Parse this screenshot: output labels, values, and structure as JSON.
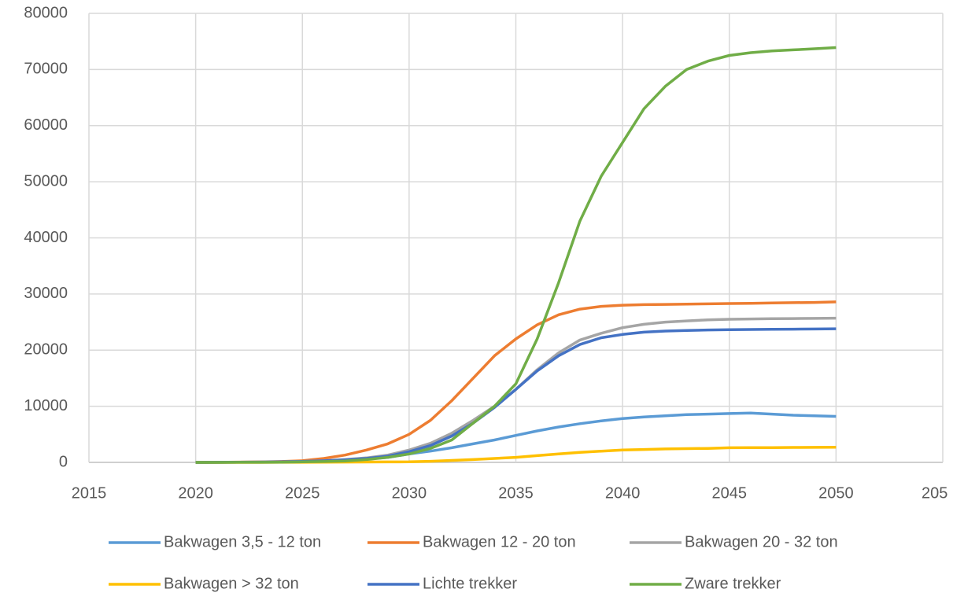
{
  "chart_data": {
    "type": "line",
    "x": [
      2020,
      2021,
      2022,
      2023,
      2024,
      2025,
      2026,
      2027,
      2028,
      2029,
      2030,
      2031,
      2032,
      2033,
      2034,
      2035,
      2036,
      2037,
      2038,
      2039,
      2040,
      2041,
      2042,
      2043,
      2044,
      2045,
      2046,
      2047,
      2048,
      2049,
      2050
    ],
    "series": [
      {
        "name": "Bakwagen 3,5 - 12 ton",
        "color": "#5b9bd5",
        "values": [
          0,
          10,
          30,
          60,
          100,
          170,
          260,
          400,
          600,
          900,
          1500,
          2000,
          2600,
          3300,
          4000,
          4800,
          5600,
          6300,
          6900,
          7400,
          7800,
          8100,
          8300,
          8500,
          8600,
          8700,
          8800,
          8600,
          8400,
          8300,
          8200
        ]
      },
      {
        "name": "Bakwagen 12 - 20 ton",
        "color": "#ed7d31",
        "values": [
          0,
          20,
          50,
          90,
          150,
          300,
          700,
          1300,
          2200,
          3300,
          5000,
          7500,
          11000,
          15000,
          19000,
          22000,
          24500,
          26300,
          27300,
          27800,
          28000,
          28100,
          28150,
          28200,
          28250,
          28300,
          28350,
          28400,
          28450,
          28500,
          28600
        ]
      },
      {
        "name": "Bakwagen 20 - 32 ton",
        "color": "#a5a5a5",
        "values": [
          0,
          10,
          30,
          60,
          100,
          180,
          300,
          500,
          800,
          1300,
          2200,
          3400,
          5200,
          7500,
          10000,
          13000,
          16500,
          19500,
          21800,
          23000,
          24000,
          24600,
          25000,
          25200,
          25400,
          25500,
          25550,
          25600,
          25620,
          25650,
          25700
        ]
      },
      {
        "name": "Bakwagen > 32 ton",
        "color": "#ffc000",
        "values": [
          0,
          0,
          0,
          5,
          10,
          20,
          30,
          50,
          70,
          90,
          100,
          200,
          350,
          500,
          700,
          900,
          1200,
          1500,
          1800,
          2000,
          2200,
          2300,
          2400,
          2450,
          2500,
          2600,
          2620,
          2640,
          2660,
          2680,
          2700
        ]
      },
      {
        "name": "Lichte trekker",
        "color": "#4472c4",
        "values": [
          0,
          10,
          30,
          60,
          100,
          170,
          280,
          450,
          700,
          1100,
          1900,
          3000,
          4700,
          7000,
          9800,
          13000,
          16300,
          19000,
          21000,
          22200,
          22800,
          23200,
          23400,
          23500,
          23600,
          23650,
          23680,
          23700,
          23730,
          23760,
          23800
        ]
      },
      {
        "name": "Zware trekker",
        "color": "#70ad47",
        "values": [
          0,
          5,
          10,
          20,
          40,
          100,
          150,
          250,
          500,
          900,
          1500,
          2500,
          4000,
          7000,
          10000,
          14000,
          22000,
          32000,
          43000,
          51000,
          57000,
          63000,
          67000,
          70000,
          71500,
          72500,
          73000,
          73300,
          73500,
          73700,
          73900
        ]
      }
    ],
    "xlim": [
      2015,
      2055
    ],
    "xticks": [
      2015,
      2020,
      2025,
      2030,
      2035,
      2040,
      2045,
      2050,
      {
        "value": 2055,
        "label": "205"
      }
    ],
    "ylim": [
      0,
      80000
    ],
    "yticks": [
      0,
      10000,
      20000,
      30000,
      40000,
      50000,
      60000,
      70000,
      80000
    ],
    "grid": true
  }
}
